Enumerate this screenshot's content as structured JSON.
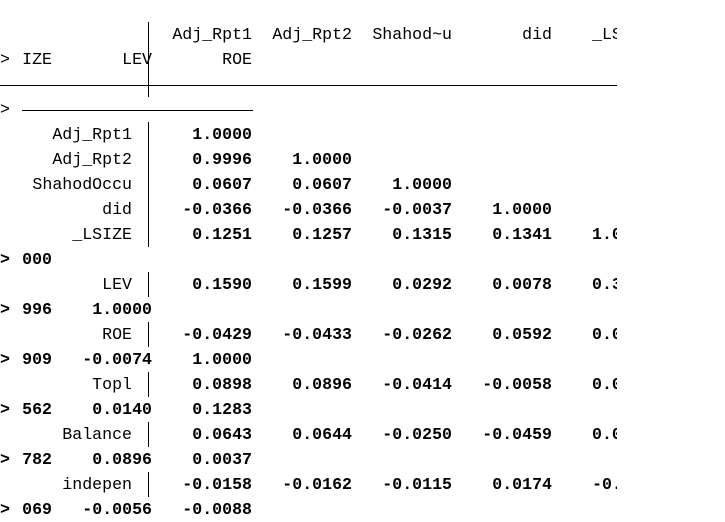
{
  "output": {
    "prompt_symbol": ">",
    "header": {
      "columns": [
        "Adj_Rpt1",
        "Adj_Rpt2",
        "Shahod~u",
        "did",
        "_LS"
      ],
      "continuation": {
        "first": "IZE",
        "columns": [
          "LEV",
          "ROE"
        ]
      }
    },
    "rows": [
      {
        "label": "Adj_Rpt1",
        "values": [
          "1.0000"
        ]
      },
      {
        "label": "Adj_Rpt2",
        "values": [
          "0.9996",
          "1.0000"
        ]
      },
      {
        "label": "ShahodOccu",
        "values": [
          "0.0607",
          "0.0607",
          "1.0000"
        ]
      },
      {
        "label": "did",
        "values": [
          "-0.0366",
          "-0.0366",
          "-0.0037",
          "1.0000"
        ]
      },
      {
        "label": "_LSIZE",
        "values": [
          "0.1251",
          "0.1257",
          "0.1315",
          "0.1341",
          "1.0"
        ],
        "continuation": {
          "first": "000",
          "columns": []
        }
      },
      {
        "label": "LEV",
        "values": [
          "0.1590",
          "0.1599",
          "0.0292",
          "0.0078",
          "0.3"
        ],
        "continuation": {
          "first": "996",
          "columns": [
            "1.0000"
          ]
        }
      },
      {
        "label": "ROE",
        "values": [
          "-0.0429",
          "-0.0433",
          "-0.0262",
          "0.0592",
          "0.0"
        ],
        "continuation": {
          "first": "909",
          "columns": [
            "-0.0074",
            "1.0000"
          ]
        }
      },
      {
        "label": "Topl",
        "values": [
          "0.0898",
          "0.0896",
          "-0.0414",
          "-0.0058",
          "0.0"
        ],
        "continuation": {
          "first": "562",
          "columns": [
            "0.0140",
            "0.1283"
          ]
        }
      },
      {
        "label": "Balance",
        "values": [
          "0.0643",
          "0.0644",
          "-0.0250",
          "-0.0459",
          "0.0"
        ],
        "continuation": {
          "first": "782",
          "columns": [
            "0.0896",
            "0.0037"
          ]
        }
      },
      {
        "label": "indepen",
        "values": [
          "-0.0158",
          "-0.0162",
          "-0.0115",
          "0.0174",
          "-0.0"
        ],
        "continuation": {
          "first": "069",
          "columns": [
            "-0.0056",
            "-0.0088"
          ]
        }
      }
    ]
  }
}
